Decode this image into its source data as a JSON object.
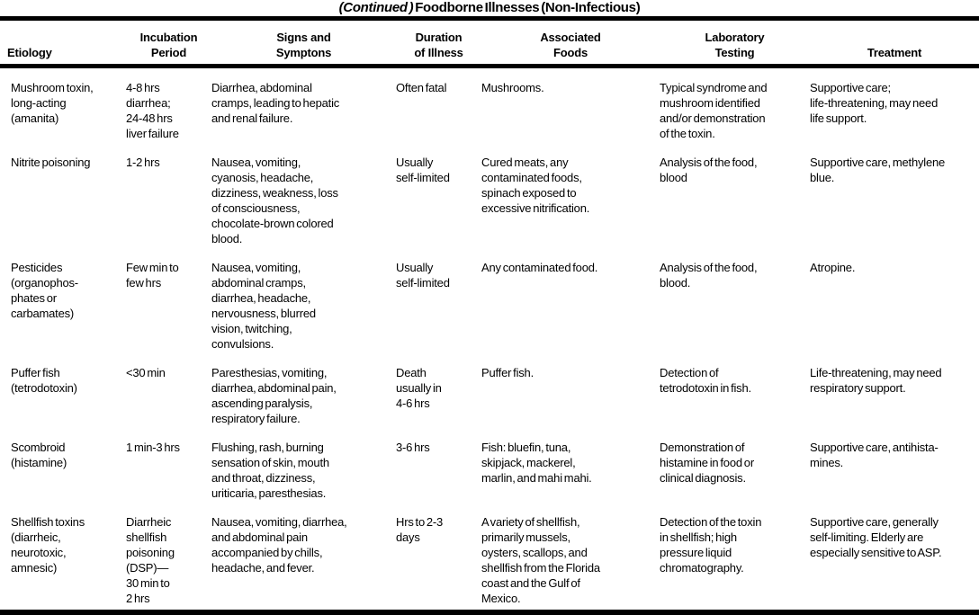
{
  "title": {
    "continued": "(Continued )",
    "main": "Foodborne Illnesses (Non-Infectious)"
  },
  "table": {
    "headers": [
      "Etiology",
      "Incubation\nPeriod",
      "Signs and\nSymptons",
      "Duration\nof Illness",
      "Associated\nFoods",
      "Laboratory\nTesting",
      "Treatment"
    ],
    "rows": [
      {
        "etiology": "Mushroom toxin,\nlong-acting\n(amanita)",
        "incubation": "4-8 hrs\ndiarrhea;\n24-48 hrs\nliver failure",
        "signs": "Diarrhea, abdominal\ncramps, leading to hepatic\nand renal failure.",
        "duration": "Often fatal",
        "foods": "Mushrooms.",
        "lab": "Typical syndrome and\nmushroom identified\nand/or demonstration\nof the toxin.",
        "treatment": "Supportive care;\nlife-threatening, may need\nlife support."
      },
      {
        "etiology": "Nitrite poisoning",
        "incubation": "1-2 hrs",
        "signs": "Nausea, vomiting,\ncyanosis, headache,\ndizziness, weakness, loss\nof consciousness,\nchocolate-brown colored\nblood.",
        "duration": "Usually\nself-limited",
        "foods": "Cured meats, any\ncontaminated foods,\nspinach exposed to\nexcessive nitrification.",
        "lab": "Analysis of the food,\nblood",
        "treatment": "Supportive care, methylene\nblue."
      },
      {
        "etiology": "Pesticides\n(organophos-\nphates or\ncarbamates)",
        "incubation": "Few min to\nfew hrs",
        "signs": "Nausea, vomiting,\nabdominal cramps,\ndiarrhea, headache,\nnervousness, blurred\nvision, twitching,\nconvulsions.",
        "duration": "Usually\nself-limited",
        "foods": "Any contaminated food.",
        "lab": "Analysis of the food,\nblood.",
        "treatment": "Atropine."
      },
      {
        "etiology": "Puffer fish\n(tetrodotoxin)",
        "incubation": "<30 min",
        "signs": "Paresthesias, vomiting,\ndiarrhea, abdominal pain,\nascending paralysis,\nrespiratory failure.",
        "duration": "Death\nusually in\n4-6 hrs",
        "foods": "Puffer fish.",
        "lab": "Detection of\ntetrodotoxin in fish.",
        "treatment": "Life-threatening, may need\nrespiratory support."
      },
      {
        "etiology": "Scombroid\n(histamine)",
        "incubation": "1 min-3 hrs",
        "signs": "Flushing, rash, burning\nsensation of skin, mouth\nand throat, dizziness,\nuriticaria, paresthesias.",
        "duration": "3-6 hrs",
        "foods": "Fish: bluefin, tuna,\nskipjack,  mackerel,\nmarlin, and mahi mahi.",
        "lab": "Demonstration of\nhistamine in food or\nclinical diagnosis.",
        "treatment": "Supportive care, antihista-\nmines."
      },
      {
        "etiology": "Shellfish toxins\n(diarrheic,\nneurotoxic,\namnesic)",
        "incubation": "Diarrheic\nshellfish\npoisoning\n(DSP)—\n30 min to\n2 hrs",
        "signs": "Nausea, vomiting, diarrhea,\nand abdominal pain\naccompanied by chills,\nheadache, and fever.",
        "duration": "Hrs to 2-3\ndays",
        "foods": "A variety of shellfish,\nprimarily mussels,\noysters, scallops, and\nshellfish from the Florida\ncoast and the Gulf of\nMexico.",
        "lab": "Detection of the toxin\nin shellfish; high\npressure liquid\nchromatography.",
        "treatment": "Supportive care, generally\nself-limiting. Elderly are\nespecially sensitive to ASP."
      }
    ]
  }
}
